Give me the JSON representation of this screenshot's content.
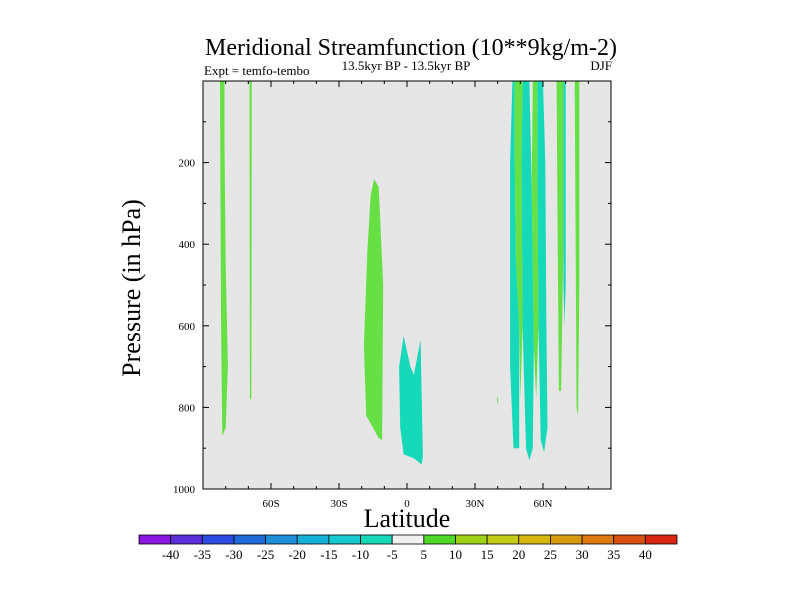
{
  "chart_data": {
    "type": "contour",
    "title": "Meridional Streamfunction (10**9kg/m-2)",
    "subtitle_left": "Expt = temfo-tembo",
    "subtitle_center": "13.5kyr BP - 13.5kyr BP",
    "subtitle_right": "DJF",
    "xlabel": "Latitude",
    "ylabel": "Pressure (in hPa)",
    "xlim": [
      -90,
      90
    ],
    "ylim": [
      1000,
      0
    ],
    "x_ticks": [
      {
        "value": -60,
        "label": "60S"
      },
      {
        "value": -30,
        "label": "30S"
      },
      {
        "value": 0,
        "label": "0"
      },
      {
        "value": 30,
        "label": "30N"
      },
      {
        "value": 60,
        "label": "60N"
      }
    ],
    "y_ticks": [
      {
        "value": 200,
        "label": "200"
      },
      {
        "value": 400,
        "label": "400"
      },
      {
        "value": 600,
        "label": "600"
      },
      {
        "value": 800,
        "label": "800"
      },
      {
        "value": 1000,
        "label": "1000"
      }
    ],
    "background_color": "#e6e6e6",
    "colorbar": {
      "labels": [
        "-40",
        "-35",
        "-30",
        "-25",
        "-20",
        "-15",
        "-10",
        "-5",
        "5",
        "10",
        "15",
        "20",
        "25",
        "30",
        "35",
        "40"
      ],
      "colors": [
        "#8b16df",
        "#5b2fd8",
        "#2e4be2",
        "#1f6bd9",
        "#1b8fd7",
        "#14b0d8",
        "#14c9cf",
        "#16d9b9",
        "#f0f0f0",
        "#50d826",
        "#9ed216",
        "#c5cc16",
        "#d7b70e",
        "#d99a0e",
        "#dd7810",
        "#d8500f",
        "#d9260f"
      ]
    },
    "regions": [
      {
        "name": "region-a",
        "level": 5,
        "color": "#66e045",
        "polygon": [
          [
            -82.5,
            1
          ],
          [
            -80.5,
            1
          ],
          [
            -80.5,
            160
          ],
          [
            -80,
            450
          ],
          [
            -79,
            700
          ],
          [
            -80,
            850
          ],
          [
            -81.5,
            870
          ],
          [
            -82,
            600
          ],
          [
            -82.3,
            300
          ]
        ]
      },
      {
        "name": "region-b",
        "level": 5,
        "color": "#66e045",
        "polygon": [
          [
            -69.5,
            1
          ],
          [
            -68.5,
            1
          ],
          [
            -68.5,
            400
          ],
          [
            -68.7,
            780
          ],
          [
            -69.3,
            780
          ],
          [
            -69.4,
            400
          ]
        ]
      },
      {
        "name": "region-c",
        "level": 5,
        "color": "#66e045",
        "polygon": [
          [
            -14.5,
            240
          ],
          [
            -12.5,
            260
          ],
          [
            -10.5,
            500
          ],
          [
            -11,
            880
          ],
          [
            -12.5,
            875
          ],
          [
            -18,
            820
          ],
          [
            -19,
            650
          ],
          [
            -17.5,
            420
          ],
          [
            -16,
            280
          ]
        ]
      },
      {
        "name": "region-d",
        "level": -5,
        "color": "#16d9b9",
        "polygon": [
          [
            -1.5,
            625
          ],
          [
            1.5,
            700
          ],
          [
            3,
            720
          ],
          [
            6,
            635
          ],
          [
            7,
            920
          ],
          [
            6.5,
            940
          ],
          [
            3,
            925
          ],
          [
            -1.5,
            915
          ],
          [
            -3,
            850
          ],
          [
            -3.5,
            700
          ]
        ]
      },
      {
        "name": "region-e",
        "level": -5,
        "color": "#16d9b9",
        "polygon": [
          [
            46.5,
            1
          ],
          [
            47.5,
            1
          ],
          [
            47.5,
            170
          ],
          [
            48,
            430
          ],
          [
            49.5,
            600
          ],
          [
            49.5,
            900
          ],
          [
            47,
            900
          ],
          [
            45.5,
            700
          ],
          [
            45.5,
            200
          ]
        ]
      },
      {
        "name": "region-f",
        "level": -5,
        "color": "#16d9b9",
        "polygon": [
          [
            51,
            1
          ],
          [
            54,
            1
          ],
          [
            55,
            260
          ],
          [
            56,
            650
          ],
          [
            55.5,
            900
          ],
          [
            54,
            930
          ],
          [
            52.5,
            900
          ],
          [
            51,
            600
          ],
          [
            50.5,
            200
          ]
        ]
      },
      {
        "name": "region-g",
        "level": -5,
        "color": "#16d9b9",
        "polygon": [
          [
            57.5,
            1
          ],
          [
            60,
            1
          ],
          [
            61,
            200
          ],
          [
            61.5,
            600
          ],
          [
            62,
            850
          ],
          [
            60.5,
            910
          ],
          [
            59,
            880
          ],
          [
            58,
            600
          ],
          [
            57.5,
            200
          ]
        ]
      },
      {
        "name": "region-h",
        "level": 5,
        "color": "#66e045",
        "polygon": [
          [
            47.5,
            1
          ],
          [
            51,
            1
          ],
          [
            50.5,
            200
          ],
          [
            51,
            600
          ],
          [
            50,
            780
          ],
          [
            49.5,
            600
          ],
          [
            48,
            430
          ],
          [
            47.5,
            170
          ]
        ]
      },
      {
        "name": "region-i",
        "level": 5,
        "color": "#66e045",
        "polygon": [
          [
            55.5,
            1
          ],
          [
            57.5,
            1
          ],
          [
            57.5,
            200
          ],
          [
            58,
            600
          ],
          [
            57,
            780
          ],
          [
            56,
            650
          ],
          [
            55,
            260
          ]
        ]
      },
      {
        "name": "region-j",
        "level": 5,
        "color": "#66e045",
        "polygon": [
          [
            66,
            1
          ],
          [
            69,
            1
          ],
          [
            69,
            400
          ],
          [
            68,
            760
          ],
          [
            67,
            760
          ],
          [
            66.5,
            400
          ]
        ]
      },
      {
        "name": "region-k",
        "level": -5,
        "color": "#16d9b9",
        "polygon": [
          [
            69,
            1
          ],
          [
            70,
            1
          ],
          [
            70,
            500
          ],
          [
            69.5,
            600
          ],
          [
            69,
            500
          ]
        ]
      },
      {
        "name": "region-l",
        "level": 5,
        "color": "#66e045",
        "polygon": [
          [
            74,
            1
          ],
          [
            76,
            1
          ],
          [
            76,
            500
          ],
          [
            75.5,
            820
          ],
          [
            74.8,
            800
          ],
          [
            74.5,
            500
          ]
        ]
      },
      {
        "name": "region-m",
        "level": 5,
        "color": "#66e045",
        "polygon": [
          [
            39.8,
            775
          ],
          [
            40.2,
            775
          ],
          [
            40.2,
            790
          ],
          [
            39.8,
            790
          ]
        ]
      }
    ]
  }
}
